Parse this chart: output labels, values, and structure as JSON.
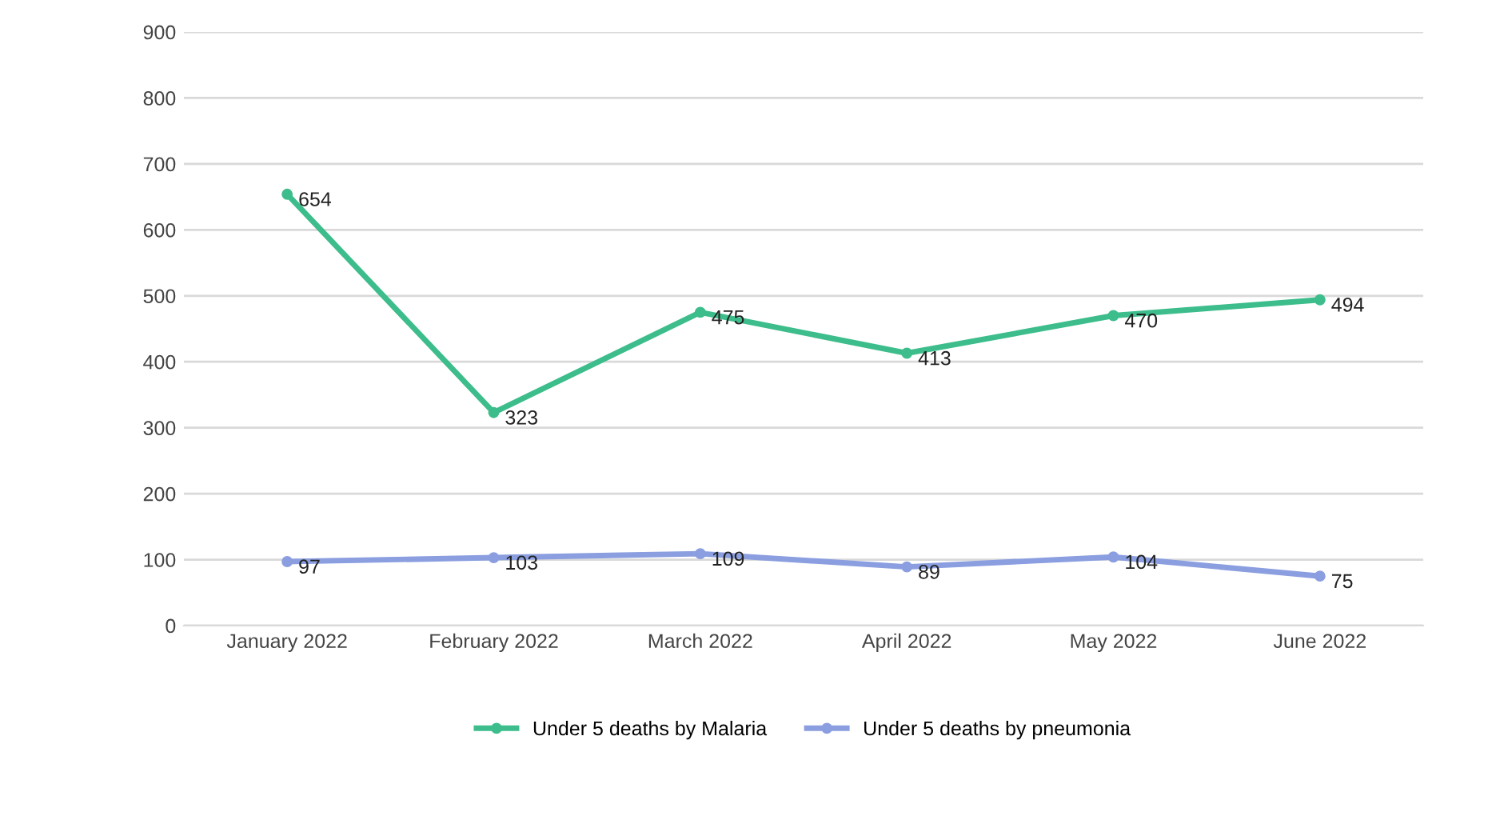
{
  "chart_data": {
    "type": "line",
    "categories": [
      "January 2022",
      "February 2022",
      "March 2022",
      "April 2022",
      "May 2022",
      "June 2022"
    ],
    "series": [
      {
        "name": "Under 5 deaths by Malaria",
        "color": "#3dbd8c",
        "values": [
          654,
          323,
          475,
          413,
          470,
          494
        ]
      },
      {
        "name": "Under 5 deaths by pneumonia",
        "color": "#8a9ee0",
        "values": [
          97,
          103,
          109,
          89,
          104,
          75
        ]
      }
    ],
    "ylim": [
      0,
      900
    ],
    "yticks": [
      0,
      100,
      200,
      300,
      400,
      500,
      600,
      700,
      800,
      900
    ],
    "grid": "y",
    "legend": "bottom",
    "marker": "circle",
    "line_style": "solid",
    "data_labels": true
  }
}
